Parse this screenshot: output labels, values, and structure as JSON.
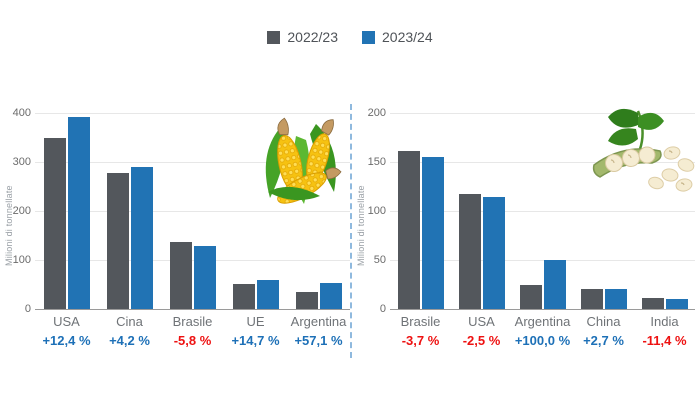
{
  "legend": {
    "items": [
      {
        "label": "2022/23",
        "color": "#53575c"
      },
      {
        "label": "2023/24",
        "color": "#2173b4"
      }
    ]
  },
  "watermark": {
    "glyph": "3"
  },
  "colors": {
    "bar_2022_23": "#53575c",
    "bar_2023_24": "#2173b4",
    "positive_pct": "#1d70b7",
    "negative_pct": "#ee1111",
    "grid": "#e7e7e7",
    "axis": "#9a9a9a",
    "divider": "#8fb9de"
  },
  "chart_data": [
    {
      "type": "bar",
      "title": "",
      "icon": "corn-illustration",
      "ylabel": "Milioni di tonnellate",
      "ylim": [
        0,
        400
      ],
      "yticks": [
        0,
        100,
        200,
        300,
        400
      ],
      "grid": true,
      "legend_position": "top",
      "categories": [
        "USA",
        "Cina",
        "Brasile",
        "UE",
        "Argentina"
      ],
      "series": [
        {
          "name": "2022/23",
          "values": [
            349,
            277,
            137,
            52,
            34
          ]
        },
        {
          "name": "2023/24",
          "values": [
            392,
            289,
            129,
            60,
            53.4
          ]
        }
      ],
      "changes": [
        {
          "text": "+12,4 %",
          "direction": "up"
        },
        {
          "text": "+4,2 %",
          "direction": "up"
        },
        {
          "text": "-5,8 %",
          "direction": "down"
        },
        {
          "text": "+14,7 %",
          "direction": "up"
        },
        {
          "text": "+57,1 %",
          "direction": "up"
        }
      ]
    },
    {
      "type": "bar",
      "title": "",
      "icon": "soybean-illustration",
      "ylabel": "Milioni di tonnellate",
      "ylim": [
        0,
        200
      ],
      "yticks": [
        0,
        50,
        100,
        150,
        200
      ],
      "grid": true,
      "legend_position": "top",
      "categories": [
        "Brasile",
        "USA",
        "Argentina",
        "China",
        "India"
      ],
      "series": [
        {
          "name": "2022/23",
          "values": [
            161,
            117,
            25,
            20.3,
            11.4
          ]
        },
        {
          "name": "2023/24",
          "values": [
            155,
            114,
            50,
            20.8,
            10.1
          ]
        }
      ],
      "changes": [
        {
          "text": "-3,7 %",
          "direction": "down"
        },
        {
          "text": "-2,5 %",
          "direction": "down"
        },
        {
          "text": "+100,0 %",
          "direction": "up"
        },
        {
          "text": "+2,7 %",
          "direction": "up"
        },
        {
          "text": "-11,4 %",
          "direction": "down"
        }
      ]
    }
  ]
}
